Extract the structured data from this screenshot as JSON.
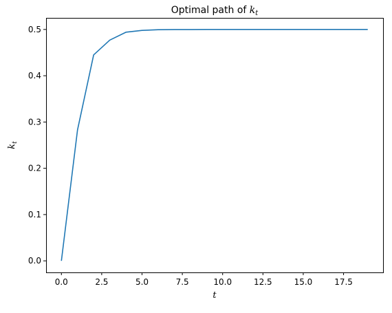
{
  "chart_data": {
    "type": "line",
    "title": "Optimal path of ",
    "title_math": "k",
    "title_math_sub": "t",
    "xlabel": "t",
    "ylabel": "k",
    "ylabel_sub": "t",
    "xlim": [
      -0.95,
      19.95
    ],
    "ylim": [
      -0.025,
      0.525
    ],
    "xticks": [
      "0.0",
      "2.5",
      "5.0",
      "7.5",
      "10.0",
      "12.5",
      "15.0",
      "17.5"
    ],
    "xtick_values": [
      0,
      2.5,
      5,
      7.5,
      10,
      12.5,
      15,
      17.5
    ],
    "yticks": [
      "0.0",
      "0.1",
      "0.2",
      "0.3",
      "0.4",
      "0.5"
    ],
    "ytick_values": [
      0,
      0.1,
      0.2,
      0.3,
      0.4,
      0.5
    ],
    "grid": false,
    "series": [
      {
        "color": "#1f77b4",
        "x": [
          0,
          1,
          2,
          3,
          4,
          5,
          6,
          7,
          8,
          9,
          10,
          11,
          12,
          13,
          14,
          15,
          16,
          17,
          18,
          19
        ],
        "y": [
          0,
          0.283,
          0.445,
          0.477,
          0.494,
          0.498,
          0.4995,
          0.4998,
          0.4999,
          0.5,
          0.5,
          0.5,
          0.5,
          0.5,
          0.5,
          0.5,
          0.5,
          0.5,
          0.5,
          0.5
        ]
      }
    ]
  }
}
